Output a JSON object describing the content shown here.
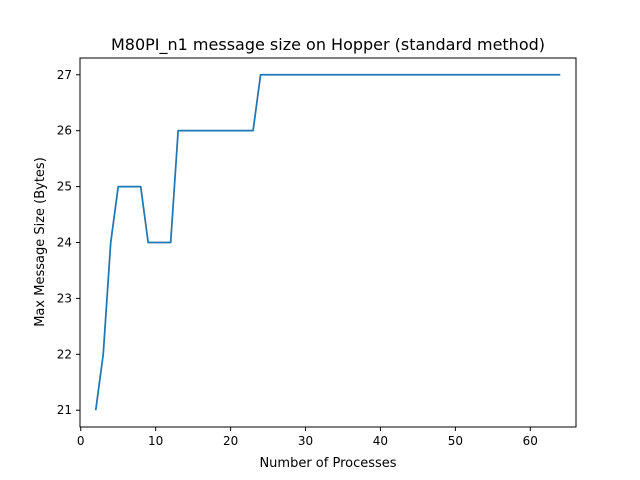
{
  "chart_data": {
    "type": "line",
    "title": "M80PI_n1 message size on Hopper (standard method)",
    "xlabel": "Number of Processes",
    "ylabel": "Max Message Size (Bytes)",
    "xlim": [
      -0.1,
      66.1
    ],
    "ylim": [
      20.7,
      27.3
    ],
    "xticks": [
      0,
      10,
      20,
      30,
      40,
      50,
      60
    ],
    "yticks": [
      21,
      22,
      23,
      24,
      25,
      26,
      27
    ],
    "grid": false,
    "series": [
      {
        "color": "#1f77b4",
        "x": [
          2,
          3,
          4,
          5,
          6,
          7,
          8,
          9,
          10,
          11,
          12,
          13,
          14,
          15,
          16,
          17,
          18,
          19,
          20,
          21,
          22,
          23,
          24,
          25,
          30,
          40,
          50,
          60,
          64
        ],
        "y": [
          21,
          22,
          24,
          25,
          25,
          25,
          25,
          24,
          24,
          24,
          24,
          26,
          26,
          26,
          26,
          26,
          26,
          26,
          26,
          26,
          26,
          26,
          27,
          27,
          27,
          27,
          27,
          27,
          27
        ]
      }
    ]
  }
}
